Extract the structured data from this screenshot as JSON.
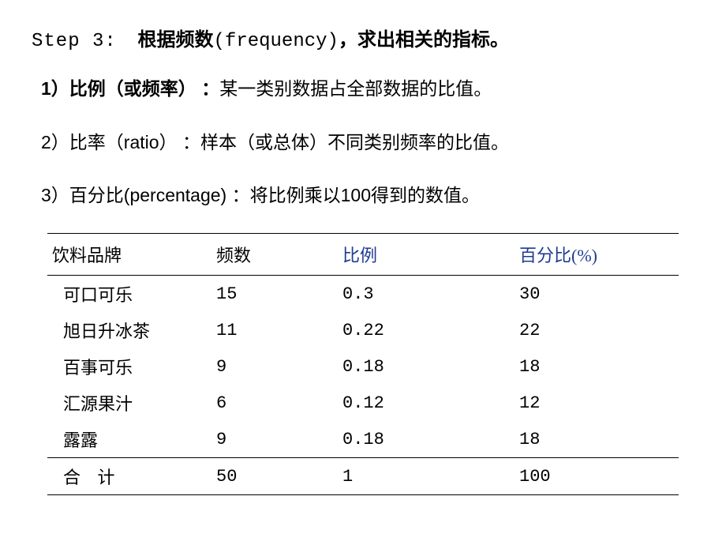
{
  "header": {
    "step_label": "Step 3:",
    "bold_part1": "根据频数",
    "freq_en": "(frequency)",
    "bold_sep": "，",
    "bold_part2": "求出相关的指标。"
  },
  "definitions": {
    "d1_num": "1）",
    "d1_term": "比例（或频率）",
    "d1_colon": "：",
    "d1_body": "某一类别数据占全部数据的比值。",
    "d2_num": "2）",
    "d2_term_pre": "比率（",
    "d2_term_en": "ratio",
    "d2_term_post": "）",
    "d2_colon": "：",
    "d2_body": "样本（或总体）不同类别频率的比值。",
    "d3_num": "3）",
    "d3_term_pre": "百分比",
    "d3_term_en": "(percentage)",
    "d3_colon": "：",
    "d3_body_pre": "将比例乘以",
    "d3_body_num": "100",
    "d3_body_post": "得到的数值。"
  },
  "table": {
    "headers": {
      "brand": "饮料品牌",
      "freq": "频数",
      "prop": "比例",
      "pct": "百分比(%)"
    },
    "header_colors": {
      "normal": "#000000",
      "highlight": "#2a3b7a"
    },
    "font_size": 22,
    "col_widths": [
      "26%",
      "20%",
      "28%",
      "26%"
    ],
    "border_color": "#000000",
    "rows": [
      {
        "brand": "可口可乐",
        "freq": "15",
        "prop": "0.3",
        "pct": "30"
      },
      {
        "brand": "旭日升冰茶",
        "freq": "11",
        "prop": "0.22",
        "pct": "22"
      },
      {
        "brand": "百事可乐",
        "freq": "9",
        "prop": "0.18",
        "pct": "18"
      },
      {
        "brand": "汇源果汁",
        "freq": "6",
        "prop": "0.12",
        "pct": "12"
      },
      {
        "brand": "露露",
        "freq": "9",
        "prop": "0.18",
        "pct": "18"
      }
    ],
    "total": {
      "brand": "合 计",
      "freq": "50",
      "prop": "1",
      "pct": "100"
    }
  }
}
